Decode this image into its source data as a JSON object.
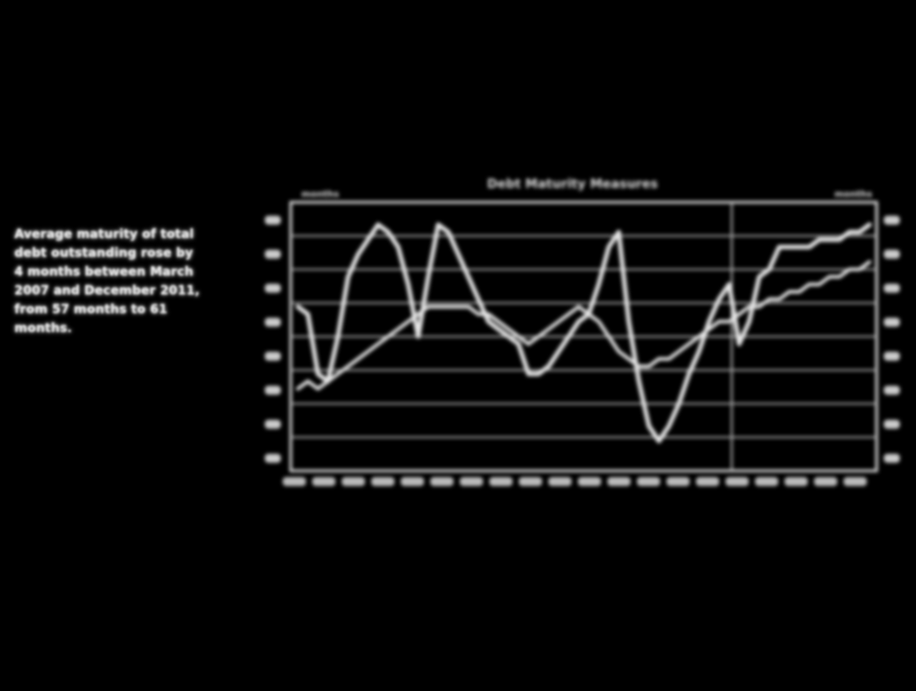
{
  "side_note": {
    "text": "Average maturity of total debt outstanding rose by 4 months between March 2007 and December 2011, from 57 months to 61 months."
  },
  "colors": {
    "background": "#000000",
    "ink": "#e8e8e8"
  },
  "chart_data": {
    "type": "line",
    "title": "Debt Maturity Measures",
    "left_axis_label": "months",
    "right_axis_label": "months",
    "grid": true,
    "series": [
      {
        "values": [
          62,
          61,
          53,
          52,
          58,
          66,
          69,
          71,
          73,
          72,
          70,
          65,
          58,
          66,
          73,
          72,
          69,
          66,
          63,
          60,
          59,
          58,
          57,
          53,
          53,
          54,
          56,
          58,
          60,
          61,
          65,
          70,
          72,
          60,
          52,
          46,
          44,
          46,
          49,
          53,
          56,
          60,
          63,
          65,
          57,
          60,
          66,
          67,
          70,
          70,
          70,
          70,
          71,
          71,
          71,
          72,
          72,
          73
        ],
        "style": "thick"
      },
      {
        "values": [
          51,
          52,
          51,
          52,
          53,
          54,
          55,
          56,
          57,
          58,
          59,
          60,
          61,
          62,
          62,
          62,
          62,
          62,
          61,
          61,
          60,
          59,
          58,
          57,
          58,
          59,
          60,
          61,
          62,
          61,
          60,
          58,
          56,
          55,
          54,
          54,
          55,
          55,
          56,
          57,
          58,
          59,
          60,
          60,
          61,
          62,
          62,
          63,
          63,
          64,
          64,
          65,
          65,
          66,
          66,
          67,
          67,
          68
        ],
        "style": "thin"
      }
    ]
  }
}
